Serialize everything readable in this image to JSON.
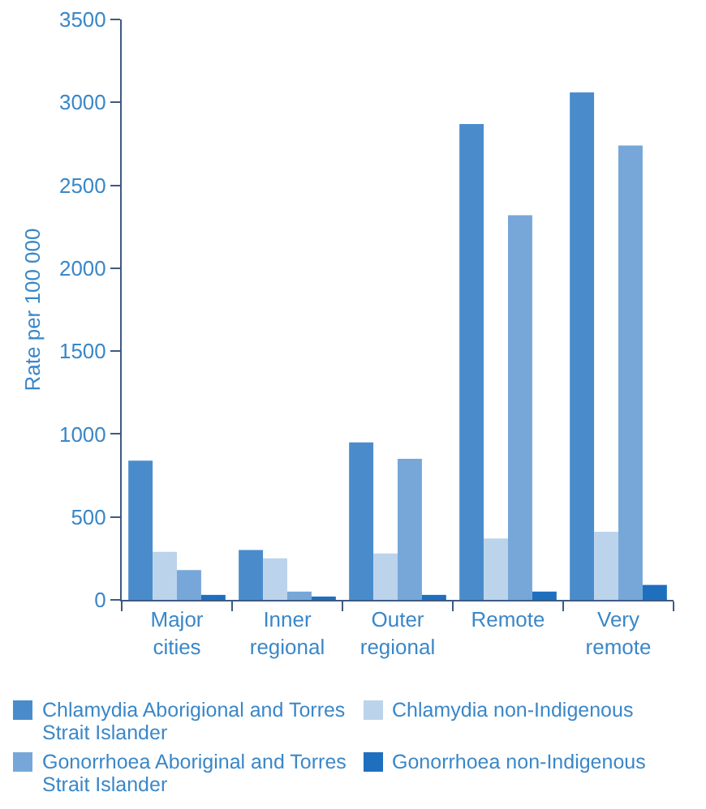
{
  "chart_data": {
    "type": "bar",
    "ylabel": "Rate per 100 000",
    "categories": [
      "Major cities",
      "Inner regional",
      "Outer regional",
      "Remote",
      "Very remote"
    ],
    "series": [
      {
        "name": "Chlamydia Aborigional and Torres Strait Islander",
        "color": "#4a8ccb",
        "values": [
          840,
          300,
          950,
          2870,
          3060
        ]
      },
      {
        "name": "Chlamydia non-Indigenous",
        "color": "#bcd3ec",
        "values": [
          290,
          250,
          280,
          370,
          410
        ]
      },
      {
        "name": "Gonorrhoea Aboriginal and Torres Strait Islander",
        "color": "#76a7d8",
        "values": [
          180,
          50,
          850,
          2320,
          2740
        ]
      },
      {
        "name": "Gonorrhoea non-Indigenous",
        "color": "#1f6fbf",
        "values": [
          30,
          20,
          30,
          50,
          90
        ]
      }
    ],
    "ylim": [
      0,
      3500
    ],
    "yticks": [
      0,
      500,
      1000,
      1500,
      2000,
      2500,
      3000,
      3500
    ],
    "grid": false,
    "legend": "bottom"
  }
}
